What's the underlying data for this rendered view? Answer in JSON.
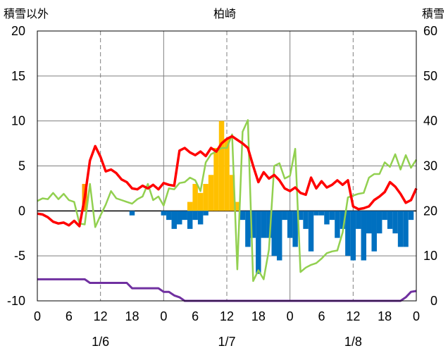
{
  "chart_data": {
    "type": "bar",
    "title": "柏崎",
    "y_left_label": "積雪以外",
    "y_right_label": "積雪",
    "ylim_left": [
      -10,
      20
    ],
    "ylim_right": [
      0,
      60
    ],
    "left_ticks": [
      "20",
      "15",
      "10",
      "5",
      "0",
      "-5",
      "-10"
    ],
    "right_ticks": [
      "60",
      "50",
      "40",
      "30",
      "20",
      "10",
      "0"
    ],
    "x_tick_labels": [
      "0",
      "12",
      "18",
      "0",
      "6",
      "12",
      "18",
      "0",
      "6",
      "12",
      "18",
      "0"
    ],
    "x_tick_hours": [
      0,
      12,
      18,
      24,
      30,
      36,
      42,
      48,
      54,
      60,
      66,
      72
    ],
    "x_tick_label_6": "6",
    "date_labels": [
      {
        "text": "1/6",
        "hour": 12
      },
      {
        "text": "1/7",
        "hour": 36
      },
      {
        "text": "1/8",
        "hour": 60
      }
    ],
    "grid": "dashed vertical at 12h and 36h and 60h; solid at day boundaries and every 5 units",
    "colors": {
      "temperature": "#ff0000",
      "other_line": "#92d050",
      "precip_bars": "#ffc000",
      "precip_highlight": "#ff9900",
      "depth_change_bars": "#0070c0",
      "snow_depth": "#7030a0"
    },
    "series": [
      {
        "key": "red",
        "x": [
          0,
          1,
          2,
          3,
          4,
          5,
          6,
          7,
          8,
          9,
          10,
          11,
          12,
          13,
          14,
          15,
          16,
          17,
          18,
          19,
          20,
          21,
          22,
          23,
          24,
          25,
          26,
          27,
          28,
          29,
          30,
          31,
          32,
          33,
          34,
          35,
          36,
          37,
          38,
          39,
          40,
          41,
          42,
          43,
          44,
          45,
          46,
          47,
          48,
          49,
          50,
          51,
          52,
          53,
          54,
          55,
          56,
          57,
          58,
          59,
          60,
          61,
          62,
          63,
          64,
          65,
          66,
          67,
          68,
          69,
          70,
          71,
          72
        ],
        "values": [
          -0.3,
          -0.4,
          -0.7,
          -1.2,
          -1.4,
          -1.3,
          -1.6,
          -1.1,
          -1.7,
          1.5,
          5.6,
          7.2,
          6.0,
          4.4,
          4.6,
          4.2,
          3.5,
          3.2,
          2.5,
          2.4,
          2.8,
          2.5,
          2.9,
          2.4,
          3.1,
          2.9,
          2.8,
          6.7,
          7.0,
          6.5,
          6.2,
          6.6,
          6.1,
          7.0,
          6.6,
          7.5,
          8.0,
          8.3,
          7.9,
          7.5,
          7.0,
          5.0,
          3.2,
          4.3,
          3.6,
          4.0,
          3.4,
          2.5,
          2.2,
          2.6,
          2.0,
          1.8,
          3.7,
          2.5,
          3.3,
          2.6,
          2.9,
          3.4,
          2.9,
          3.4,
          0.5,
          0.2,
          0.3,
          0.5,
          1.2,
          1.6,
          2.1,
          3.2,
          2.7,
          1.9,
          0.9,
          1.2,
          2.5
        ]
      },
      {
        "key": "green",
        "x": [
          0,
          1,
          2,
          3,
          4,
          5,
          6,
          7,
          8,
          9,
          10,
          11,
          12,
          13,
          14,
          15,
          16,
          17,
          18,
          19,
          20,
          21,
          22,
          23,
          24,
          25,
          26,
          27,
          28,
          29,
          30,
          31,
          32,
          33,
          34,
          35,
          36,
          37,
          38,
          39,
          40,
          41,
          42,
          43,
          44,
          45,
          46,
          47,
          48,
          49,
          50,
          51,
          52,
          53,
          54,
          55,
          56,
          57,
          58,
          59,
          60,
          61,
          62,
          63,
          64,
          65,
          66,
          67,
          68,
          69,
          70,
          71,
          72
        ],
        "values": [
          1.1,
          1.4,
          1.3,
          2.0,
          1.3,
          1.9,
          1.2,
          1.0,
          -1.4,
          -1.5,
          3.0,
          -1.8,
          -0.5,
          0.7,
          2.2,
          1.4,
          1.2,
          1.0,
          0.8,
          1.3,
          1.6,
          3.0,
          1.2,
          1.6,
          0.6,
          2.5,
          2.4,
          3.1,
          3.2,
          3.7,
          3.4,
          2.2,
          5.4,
          6.3,
          6.6,
          7.0,
          7.0,
          8.5,
          -6.5,
          8.8,
          10.1,
          -7.8,
          -6.6,
          -7.6,
          -4.3,
          5.0,
          5.3,
          3.6,
          3.9,
          6.9,
          -6.8,
          -6.3,
          -6.0,
          -5.8,
          -5.3,
          -4.7,
          -4.5,
          -4.4,
          -2.4,
          1.5,
          1.7,
          1.9,
          2.0,
          3.7,
          4.1,
          4.1,
          5.4,
          4.9,
          6.3,
          4.6,
          6.2,
          4.8,
          5.7
        ]
      },
      {
        "key": "purple",
        "x": [
          0,
          9,
          10,
          11,
          12,
          13,
          14,
          15,
          16,
          17,
          18,
          19,
          20,
          21,
          22,
          23,
          24,
          25,
          26,
          27,
          28,
          29,
          30,
          31,
          32,
          33,
          34,
          35,
          36,
          37,
          38,
          39,
          40,
          41,
          42,
          43,
          44,
          45,
          46,
          47,
          48,
          49,
          50,
          51,
          52,
          53,
          54,
          55,
          56,
          57,
          58,
          59,
          60,
          61,
          62,
          63,
          64,
          65,
          66,
          67,
          68,
          69,
          70,
          71,
          72
        ],
        "values": [
          -7.6,
          -7.6,
          -8.0,
          -8.0,
          -8.0,
          -8.0,
          -8.0,
          -8.0,
          -8.0,
          -8.0,
          -8.6,
          -8.6,
          -8.6,
          -8.6,
          -8.6,
          -8.6,
          -9.0,
          -9.0,
          -9.4,
          -9.6,
          -10.0,
          -10.0,
          -10.0,
          -10.0,
          -10.0,
          -10.0,
          -10.0,
          -10.0,
          -10.0,
          -10.0,
          -10.0,
          -10.0,
          -10.0,
          -10.0,
          -10.0,
          -10.0,
          -10.0,
          -10.0,
          -10.0,
          -10.0,
          -10.0,
          -10.0,
          -10.0,
          -10.0,
          -10.0,
          -10.0,
          -10.0,
          -10.0,
          -10.0,
          -10.0,
          -10.0,
          -10.0,
          -10.0,
          -10.0,
          -10.0,
          -10.0,
          -10.0,
          -10.0,
          -10.0,
          -10.0,
          -10.0,
          -10.0,
          -9.6,
          -9.0,
          -8.9
        ]
      },
      {
        "key": "yellow_bars",
        "x": [
          9,
          29,
          30,
          31,
          32,
          33,
          34,
          35,
          36,
          37,
          38
        ],
        "values": [
          3.0,
          1.0,
          3.0,
          2.0,
          3.0,
          4.0,
          7.0,
          10.0,
          8.0,
          4.0,
          1.0
        ]
      },
      {
        "key": "blue_bars",
        "x": [
          18,
          24,
          25,
          26,
          27,
          28,
          29,
          30,
          31,
          32,
          33,
          34,
          35,
          36,
          37,
          38,
          39,
          40,
          41,
          42,
          43,
          44,
          45,
          46,
          47,
          48,
          49,
          50,
          51,
          52,
          53,
          54,
          55,
          56,
          57,
          58,
          59,
          60,
          61,
          62,
          63,
          64,
          65,
          66,
          67,
          68,
          69,
          70,
          71
        ],
        "values": [
          -0.5,
          -0.5,
          -1.0,
          -2.0,
          -1.5,
          -1.0,
          -2.0,
          -1.0,
          -1.5,
          -0.5,
          0,
          0,
          0,
          0,
          0,
          0,
          -1.0,
          -4.0,
          -3.0,
          -7.0,
          -3.0,
          -3.0,
          -5.0,
          -5.5,
          -1.0,
          -3.0,
          -4.0,
          -1.0,
          -2.0,
          -4.5,
          -0.5,
          -0.5,
          -1.5,
          -1.0,
          -3.0,
          -2.0,
          -5.0,
          -5.5,
          -2.0,
          -5.5,
          -2.5,
          -4.5,
          -2.5,
          -1.0,
          -2.0,
          -2.5,
          -4.0,
          -4.0,
          -1.0
        ]
      }
    ]
  }
}
